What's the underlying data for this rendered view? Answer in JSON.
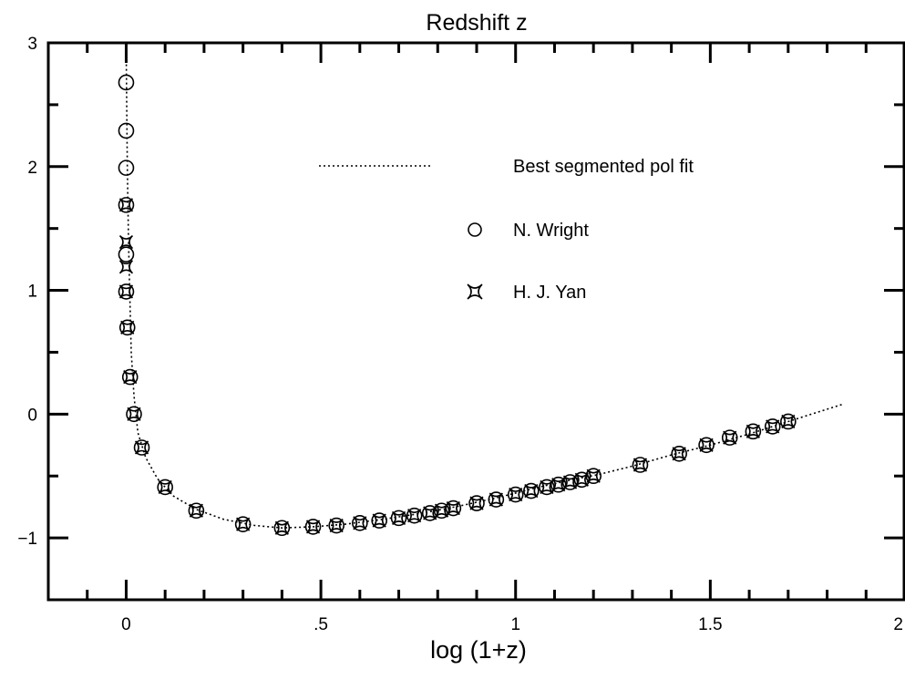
{
  "chart_data": {
    "type": "scatter",
    "title": "Redshift z",
    "xlabel": "log (1+z)",
    "ylabel": "",
    "xlim": [
      -0.2,
      2.0
    ],
    "ylim": [
      -1.5,
      3.0
    ],
    "x_ticks": [
      0,
      0.5,
      1,
      1.5,
      2
    ],
    "x_tick_labels": [
      "0",
      ".5",
      "1",
      "1.5",
      "2"
    ],
    "y_ticks": [
      -1,
      0,
      1,
      2,
      3
    ],
    "y_tick_labels": [
      "−1",
      "0",
      "1",
      "2",
      "3"
    ],
    "legend_position": "top-right",
    "legend": [
      {
        "label": "Best segmented pol fit",
        "marker": "dotted-line"
      },
      {
        "label": "N. Wright",
        "marker": "circle"
      },
      {
        "label": "H. J. Yan",
        "marker": "star"
      }
    ],
    "series": [
      {
        "name": "Best segmented pol fit",
        "kind": "dotted-line",
        "points": [
          [
            0.0,
            2.9
          ],
          [
            0.003,
            2.0
          ],
          [
            0.006,
            1.4
          ],
          [
            0.009,
            1.0
          ],
          [
            0.013,
            0.5
          ],
          [
            0.02,
            0.15
          ],
          [
            0.03,
            -0.15
          ],
          [
            0.05,
            -0.35
          ],
          [
            0.08,
            -0.52
          ],
          [
            0.12,
            -0.66
          ],
          [
            0.18,
            -0.77
          ],
          [
            0.25,
            -0.85
          ],
          [
            0.33,
            -0.9
          ],
          [
            0.4,
            -0.92
          ],
          [
            0.48,
            -0.91
          ],
          [
            0.56,
            -0.89
          ],
          [
            0.66,
            -0.85
          ],
          [
            0.76,
            -0.8
          ],
          [
            0.86,
            -0.74
          ],
          [
            0.96,
            -0.67
          ],
          [
            1.06,
            -0.59
          ],
          [
            1.16,
            -0.52
          ],
          [
            1.21,
            -0.49
          ],
          [
            1.3,
            -0.42
          ],
          [
            1.4,
            -0.33
          ],
          [
            1.5,
            -0.25
          ],
          [
            1.6,
            -0.16
          ],
          [
            1.7,
            -0.06
          ],
          [
            1.78,
            0.02
          ],
          [
            1.84,
            0.08
          ]
        ]
      },
      {
        "name": "N. Wright",
        "kind": "circle",
        "points": [
          [
            0.0,
            2.68
          ],
          [
            0.0,
            2.29
          ],
          [
            0.0,
            1.99
          ],
          [
            0.0,
            1.69
          ],
          [
            0.0,
            1.29
          ],
          [
            0.0,
            0.99
          ],
          [
            0.003,
            0.7
          ],
          [
            0.01,
            0.3
          ],
          [
            0.02,
            0.0
          ],
          [
            0.04,
            -0.27
          ],
          [
            0.1,
            -0.59
          ],
          [
            0.18,
            -0.78
          ],
          [
            0.3,
            -0.89
          ],
          [
            0.4,
            -0.92
          ],
          [
            0.48,
            -0.91
          ],
          [
            0.54,
            -0.9
          ],
          [
            0.6,
            -0.88
          ],
          [
            0.65,
            -0.86
          ],
          [
            0.7,
            -0.84
          ],
          [
            0.74,
            -0.82
          ],
          [
            0.78,
            -0.8
          ],
          [
            0.81,
            -0.78
          ],
          [
            0.84,
            -0.76
          ],
          [
            0.9,
            -0.72
          ],
          [
            0.95,
            -0.69
          ],
          [
            1.0,
            -0.65
          ],
          [
            1.04,
            -0.62
          ],
          [
            1.08,
            -0.59
          ],
          [
            1.11,
            -0.57
          ],
          [
            1.14,
            -0.55
          ],
          [
            1.17,
            -0.53
          ],
          [
            1.2,
            -0.5
          ],
          [
            1.32,
            -0.41
          ],
          [
            1.42,
            -0.32
          ],
          [
            1.49,
            -0.25
          ],
          [
            1.55,
            -0.19
          ],
          [
            1.61,
            -0.14
          ],
          [
            1.66,
            -0.1
          ],
          [
            1.7,
            -0.06
          ]
        ]
      },
      {
        "name": "H. J. Yan",
        "kind": "star",
        "points": [
          [
            0.0,
            1.69
          ],
          [
            0.0,
            1.39
          ],
          [
            0.0,
            1.19
          ],
          [
            0.0,
            0.99
          ],
          [
            0.003,
            0.7
          ],
          [
            0.01,
            0.3
          ],
          [
            0.02,
            0.0
          ],
          [
            0.04,
            -0.27
          ],
          [
            0.1,
            -0.59
          ],
          [
            0.18,
            -0.78
          ],
          [
            0.3,
            -0.89
          ],
          [
            0.4,
            -0.92
          ],
          [
            0.48,
            -0.91
          ],
          [
            0.54,
            -0.9
          ],
          [
            0.6,
            -0.88
          ],
          [
            0.65,
            -0.86
          ],
          [
            0.7,
            -0.84
          ],
          [
            0.74,
            -0.82
          ],
          [
            0.78,
            -0.8
          ],
          [
            0.81,
            -0.78
          ],
          [
            0.84,
            -0.76
          ],
          [
            0.9,
            -0.72
          ],
          [
            0.95,
            -0.69
          ],
          [
            1.0,
            -0.65
          ],
          [
            1.04,
            -0.62
          ],
          [
            1.08,
            -0.59
          ],
          [
            1.11,
            -0.57
          ],
          [
            1.14,
            -0.55
          ],
          [
            1.17,
            -0.53
          ],
          [
            1.2,
            -0.5
          ],
          [
            1.32,
            -0.41
          ],
          [
            1.42,
            -0.32
          ],
          [
            1.49,
            -0.25
          ],
          [
            1.55,
            -0.19
          ],
          [
            1.61,
            -0.14
          ],
          [
            1.66,
            -0.1
          ],
          [
            1.7,
            -0.06
          ]
        ]
      }
    ]
  }
}
